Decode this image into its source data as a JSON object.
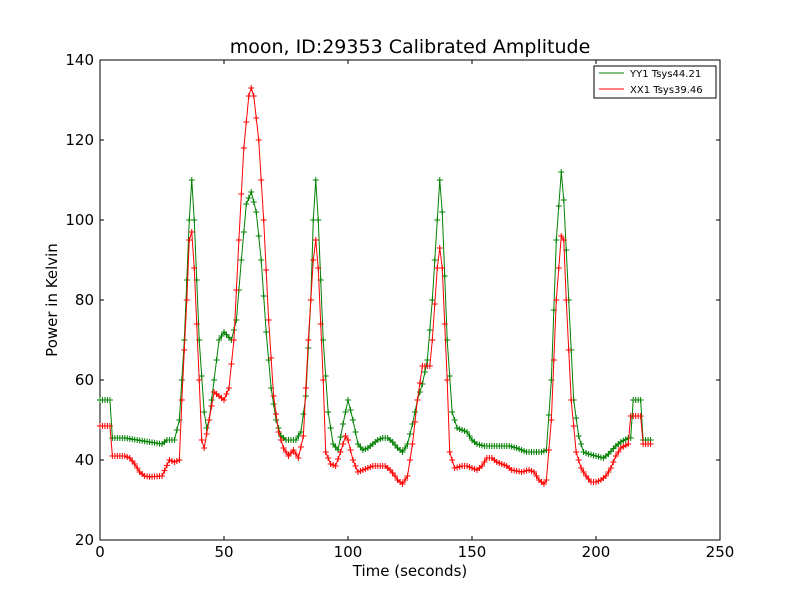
{
  "chart_data": {
    "type": "line",
    "title": "moon, ID:29353 Calibrated Amplitude",
    "xlabel": "Time (seconds)",
    "ylabel": "Power in Kelvin",
    "xlim": [
      0,
      250
    ],
    "ylim": [
      20,
      140
    ],
    "xticks": [
      0,
      50,
      100,
      150,
      200,
      250
    ],
    "yticks": [
      20,
      40,
      60,
      80,
      100,
      120,
      140
    ],
    "grid": false,
    "legend_position": "top-right",
    "series": [
      {
        "name": "YY1 Tsys44.21",
        "color": "#008000",
        "marker": "+",
        "points": [
          [
            0,
            55
          ],
          [
            4,
            55
          ],
          [
            5,
            45.5
          ],
          [
            10,
            45.5
          ],
          [
            15,
            45
          ],
          [
            20,
            44.5
          ],
          [
            25,
            44
          ],
          [
            27,
            45
          ],
          [
            30,
            45
          ],
          [
            32,
            50
          ],
          [
            34,
            70
          ],
          [
            36,
            100
          ],
          [
            37,
            110
          ],
          [
            38,
            100
          ],
          [
            40,
            70
          ],
          [
            42,
            52
          ],
          [
            43,
            48
          ],
          [
            44,
            50
          ],
          [
            46,
            60
          ],
          [
            48,
            70
          ],
          [
            50,
            72
          ],
          [
            53,
            70
          ],
          [
            55,
            75
          ],
          [
            57,
            90
          ],
          [
            59,
            104
          ],
          [
            61,
            107
          ],
          [
            63,
            102
          ],
          [
            65,
            90
          ],
          [
            67,
            72
          ],
          [
            69,
            58
          ],
          [
            71,
            50
          ],
          [
            73,
            46
          ],
          [
            75,
            45
          ],
          [
            77,
            45
          ],
          [
            79,
            45
          ],
          [
            81,
            47
          ],
          [
            83,
            56
          ],
          [
            85,
            80
          ],
          [
            86,
            100
          ],
          [
            87,
            110
          ],
          [
            88,
            100
          ],
          [
            90,
            70
          ],
          [
            92,
            52
          ],
          [
            94,
            44
          ],
          [
            96,
            42.5
          ],
          [
            98,
            49
          ],
          [
            100,
            55
          ],
          [
            102,
            50
          ],
          [
            104,
            44
          ],
          [
            106,
            42.5
          ],
          [
            108,
            43
          ],
          [
            110,
            44
          ],
          [
            112,
            45
          ],
          [
            114,
            45.5
          ],
          [
            116,
            45.5
          ],
          [
            118,
            44.5
          ],
          [
            120,
            43
          ],
          [
            122,
            42
          ],
          [
            124,
            44
          ],
          [
            126,
            49
          ],
          [
            128,
            55
          ],
          [
            130,
            59
          ],
          [
            132,
            65
          ],
          [
            134,
            80
          ],
          [
            136,
            100
          ],
          [
            137,
            110
          ],
          [
            138,
            102
          ],
          [
            140,
            70
          ],
          [
            142,
            52
          ],
          [
            144,
            48
          ],
          [
            146,
            47.5
          ],
          [
            148,
            47
          ],
          [
            150,
            45
          ],
          [
            152,
            44
          ],
          [
            155,
            43.5
          ],
          [
            160,
            43.5
          ],
          [
            165,
            43.5
          ],
          [
            168,
            43
          ],
          [
            170,
            42.5
          ],
          [
            172,
            42
          ],
          [
            175,
            42
          ],
          [
            178,
            42
          ],
          [
            180,
            42.5
          ],
          [
            182,
            60
          ],
          [
            184,
            95
          ],
          [
            186,
            112
          ],
          [
            187,
            105
          ],
          [
            189,
            80
          ],
          [
            191,
            55
          ],
          [
            193,
            46
          ],
          [
            195,
            42
          ],
          [
            197,
            41.5
          ],
          [
            200,
            41
          ],
          [
            203,
            40.5
          ],
          [
            205,
            41.5
          ],
          [
            208,
            43.5
          ],
          [
            210,
            44.5
          ],
          [
            213,
            45.5
          ],
          [
            214,
            45.5
          ],
          [
            215,
            55
          ],
          [
            218,
            55
          ],
          [
            219,
            45
          ],
          [
            222,
            45
          ]
        ]
      },
      {
        "name": "XX1 Tsys39.46",
        "color": "#ff0000",
        "marker": "+",
        "points": [
          [
            0,
            48.5
          ],
          [
            4,
            48.5
          ],
          [
            5,
            41
          ],
          [
            10,
            41
          ],
          [
            12,
            40.5
          ],
          [
            14,
            39
          ],
          [
            16,
            37
          ],
          [
            18,
            36
          ],
          [
            20,
            35.8
          ],
          [
            25,
            36
          ],
          [
            28,
            40
          ],
          [
            30,
            39.5
          ],
          [
            32,
            40
          ],
          [
            33,
            55
          ],
          [
            35,
            80
          ],
          [
            36,
            95
          ],
          [
            37,
            97
          ],
          [
            38,
            88
          ],
          [
            40,
            60
          ],
          [
            41,
            45
          ],
          [
            42,
            43
          ],
          [
            44,
            50
          ],
          [
            46,
            57
          ],
          [
            48,
            56
          ],
          [
            50,
            55
          ],
          [
            52,
            58
          ],
          [
            54,
            70
          ],
          [
            56,
            95
          ],
          [
            58,
            118
          ],
          [
            60,
            131
          ],
          [
            61,
            133
          ],
          [
            62,
            131
          ],
          [
            64,
            120
          ],
          [
            66,
            100
          ],
          [
            68,
            75
          ],
          [
            70,
            56
          ],
          [
            72,
            47
          ],
          [
            74,
            43
          ],
          [
            76,
            41
          ],
          [
            78,
            42.5
          ],
          [
            80,
            40.5
          ],
          [
            82,
            46
          ],
          [
            84,
            70
          ],
          [
            86,
            90
          ],
          [
            87,
            95
          ],
          [
            88,
            88
          ],
          [
            90,
            60
          ],
          [
            91,
            42
          ],
          [
            93,
            39
          ],
          [
            95,
            38.5
          ],
          [
            97,
            42
          ],
          [
            99,
            46
          ],
          [
            100,
            45
          ],
          [
            102,
            40
          ],
          [
            104,
            37
          ],
          [
            106,
            37.5
          ],
          [
            110,
            38.5
          ],
          [
            115,
            38.5
          ],
          [
            117,
            37.5
          ],
          [
            119,
            36
          ],
          [
            120,
            35
          ],
          [
            122,
            34
          ],
          [
            124,
            36
          ],
          [
            126,
            44
          ],
          [
            128,
            55
          ],
          [
            130,
            63.5
          ],
          [
            133,
            63.5
          ],
          [
            134,
            70
          ],
          [
            136,
            88
          ],
          [
            137,
            93
          ],
          [
            138,
            88
          ],
          [
            140,
            60
          ],
          [
            141,
            42
          ],
          [
            143,
            38
          ],
          [
            146,
            38.5
          ],
          [
            148,
            38.5
          ],
          [
            150,
            38
          ],
          [
            152,
            37.5
          ],
          [
            154,
            38.5
          ],
          [
            156,
            40.5
          ],
          [
            158,
            40.5
          ],
          [
            160,
            39.5
          ],
          [
            164,
            38.5
          ],
          [
            166,
            37.5
          ],
          [
            170,
            37
          ],
          [
            173,
            37.5
          ],
          [
            175,
            37
          ],
          [
            177,
            35
          ],
          [
            179,
            34
          ],
          [
            180,
            35
          ],
          [
            182,
            50
          ],
          [
            184,
            80
          ],
          [
            186,
            96
          ],
          [
            187,
            95
          ],
          [
            188,
            80
          ],
          [
            190,
            55
          ],
          [
            192,
            42
          ],
          [
            194,
            38
          ],
          [
            196,
            36
          ],
          [
            198,
            34.5
          ],
          [
            200,
            34.5
          ],
          [
            202,
            35
          ],
          [
            204,
            36
          ],
          [
            206,
            38
          ],
          [
            208,
            41
          ],
          [
            210,
            43
          ],
          [
            213,
            44
          ],
          [
            214,
            51
          ],
          [
            218,
            51
          ],
          [
            219,
            44
          ],
          [
            222,
            44
          ]
        ]
      }
    ]
  }
}
